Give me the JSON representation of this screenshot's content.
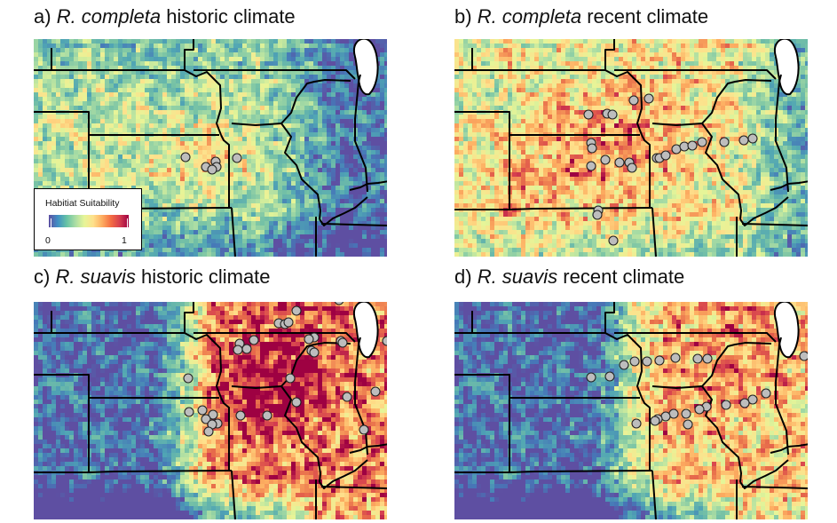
{
  "panels": [
    {
      "id": "a",
      "prefix": "a) ",
      "species": "R. completa",
      "suffix": " historic climate",
      "scenario": "completa-historic",
      "points": [
        [
          171,
          133
        ],
        [
          205,
          138
        ],
        [
          194,
          144
        ],
        [
          206,
          144
        ],
        [
          201,
          147
        ],
        [
          229,
          134
        ]
      ]
    },
    {
      "id": "b",
      "prefix": "b) ",
      "species": "R. completa",
      "suffix": " recent climate",
      "scenario": "completa-recent",
      "points": [
        [
          202,
          69
        ],
        [
          219,
          67
        ],
        [
          151,
          85
        ],
        [
          172,
          84
        ],
        [
          178,
          85
        ],
        [
          154,
          117
        ],
        [
          155,
          123
        ],
        [
          170,
          136
        ],
        [
          154,
          143
        ],
        [
          186,
          139
        ],
        [
          197,
          139
        ],
        [
          200,
          145
        ],
        [
          228,
          134
        ],
        [
          231,
          134
        ],
        [
          238,
          131
        ],
        [
          250,
          124
        ],
        [
          259,
          121
        ],
        [
          268,
          120
        ],
        [
          279,
          116
        ],
        [
          304,
          116
        ],
        [
          326,
          114
        ],
        [
          336,
          112
        ],
        [
          162,
          193
        ],
        [
          161,
          198
        ],
        [
          179,
          227
        ]
      ]
    },
    {
      "id": "c",
      "prefix": "c) ",
      "species": "R. suavis",
      "suffix": " historic climate",
      "scenario": "suavis-historic",
      "points": [
        [
          344,
          -2
        ],
        [
          296,
          10
        ],
        [
          276,
          24
        ],
        [
          283,
          25
        ],
        [
          287,
          23
        ],
        [
          316,
          40
        ],
        [
          310,
          42
        ],
        [
          232,
          47
        ],
        [
          248,
          43
        ],
        [
          230,
          54
        ],
        [
          240,
          53
        ],
        [
          313,
          55
        ],
        [
          316,
          57
        ],
        [
          346,
          44
        ],
        [
          348,
          46
        ],
        [
          398,
          44
        ],
        [
          404,
          58
        ],
        [
          174,
          86
        ],
        [
          289,
          86
        ],
        [
          385,
          101
        ],
        [
          175,
          124
        ],
        [
          190,
          122
        ],
        [
          202,
          127
        ],
        [
          194,
          132
        ],
        [
          207,
          137
        ],
        [
          201,
          138
        ],
        [
          233,
          128
        ],
        [
          263,
          128
        ],
        [
          296,
          113
        ],
        [
          353,
          107
        ],
        [
          197,
          146
        ],
        [
          372,
          144
        ]
      ]
    },
    {
      "id": "d",
      "prefix": "d) ",
      "species": "R. suavis",
      "suffix": " recent climate",
      "scenario": "suavis-recent",
      "points": [
        [
          154,
          85
        ],
        [
          175,
          84
        ],
        [
          191,
          71
        ],
        [
          203,
          67
        ],
        [
          217,
          67
        ],
        [
          231,
          66
        ],
        [
          249,
          63
        ],
        [
          274,
          64
        ],
        [
          285,
          64
        ],
        [
          394,
          61
        ],
        [
          351,
          103
        ],
        [
          336,
          110
        ],
        [
          327,
          114
        ],
        [
          306,
          116
        ],
        [
          284,
          118
        ],
        [
          276,
          121
        ],
        [
          261,
          126
        ],
        [
          247,
          126
        ],
        [
          238,
          129
        ],
        [
          229,
          132
        ],
        [
          226,
          134
        ],
        [
          205,
          137
        ],
        [
          263,
          138
        ]
      ]
    }
  ],
  "legend": {
    "title": "Habitiat Suitability",
    "min": "0",
    "max": "1"
  },
  "colors": {
    "low": "#5e4fa2",
    "mid": "#e6f598",
    "high": "#9e0142",
    "marker": "#bdbdbd",
    "boundary": "#000000",
    "lake": "#ffffff"
  }
}
